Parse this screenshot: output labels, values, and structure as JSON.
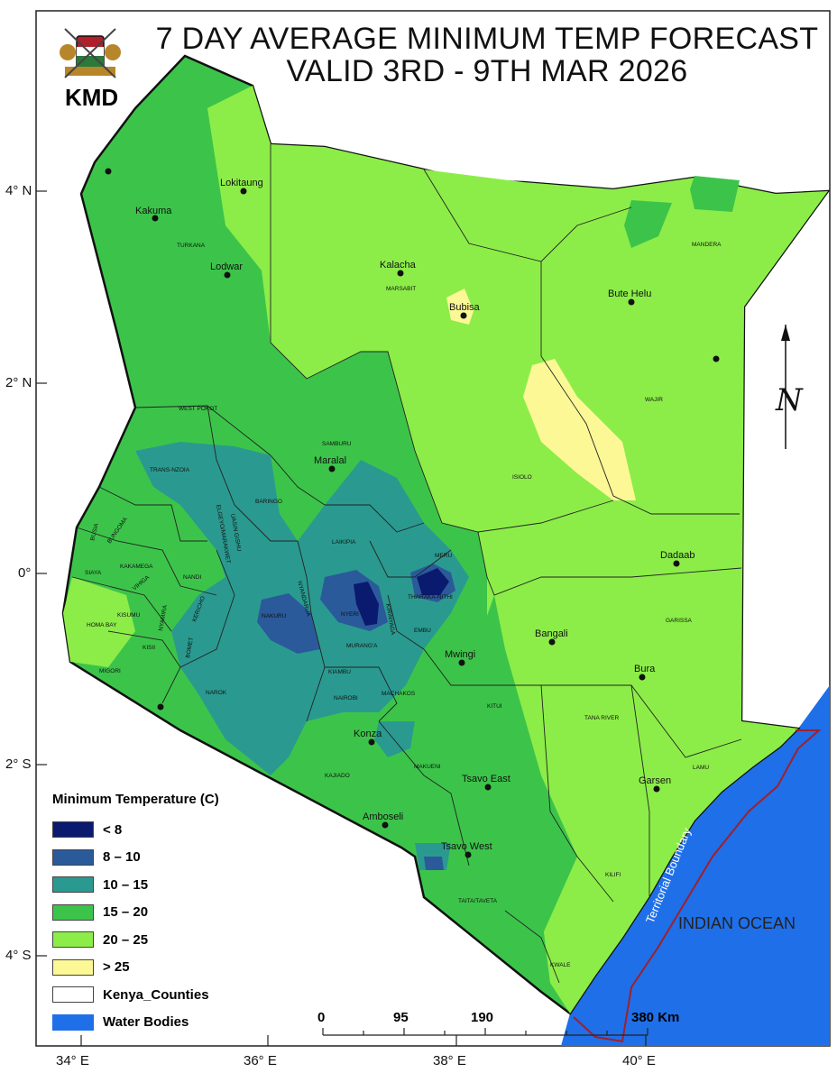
{
  "header": {
    "title_line1": "7 DAY AVERAGE MINIMUM TEMP FORECAST",
    "title_line2": "VALID 3RD - 9TH MAR 2026",
    "logo_text": "KMD"
  },
  "axes": {
    "latitude": [
      "4° N",
      "2° N",
      "0°",
      "2° S",
      "4° S"
    ],
    "longitude": [
      "34° E",
      "36° E",
      "38° E",
      "40° E"
    ]
  },
  "legend": {
    "title": "Minimum Temperature (C)",
    "items": [
      {
        "label": "< 8",
        "color": "#0a1a6e"
      },
      {
        "label": "8 – 10",
        "color": "#2a5a9a"
      },
      {
        "label": "10 – 15",
        "color": "#2a9a90"
      },
      {
        "label": "15 – 20",
        "color": "#3cc44a"
      },
      {
        "label": "20 – 25",
        "color": "#8ced48"
      },
      {
        "label": "> 25",
        "color": "#fcf896"
      },
      {
        "label": "Kenya_Counties",
        "color": "#ffffff"
      },
      {
        "label": "Water Bodies",
        "color": "#1f6fe8"
      }
    ]
  },
  "scale_bar": {
    "labels": [
      "0",
      "95",
      "190",
      "380 Km"
    ]
  },
  "map_labels": {
    "ocean": "INDIAN OCEAN",
    "boundary": "Territorial Boundary",
    "north_symbol": "N"
  },
  "towns": [
    "Lokitaung",
    "Kakuma",
    "Lodwar",
    "Kalacha",
    "Bubisa",
    "Bute Helu",
    "Maralal",
    "Dadaab",
    "Bangali",
    "Mwingi",
    "Bura",
    "Konza",
    "Garsen",
    "Tsavo East",
    "Amboseli",
    "Tsavo West"
  ],
  "counties": [
    "TURKANA",
    "MARSABIT",
    "MANDERA",
    "WAJIR",
    "WEST POKOT",
    "SAMBURU",
    "ISIOLO",
    "TRANS-NZOIA",
    "ELGEYO/MARAKWET",
    "UASIN GISHU",
    "BARINGO",
    "LAIKIPIA",
    "MERU",
    "THARAKA-NITHI",
    "NANDI",
    "KAKAMEGA",
    "BUNGOMA",
    "BUSIA",
    "SIAYA",
    "VIHIGA",
    "KISUMU",
    "KERICHO",
    "NAKURU",
    "NYANDARUA",
    "NYERI",
    "KIRINYAGA",
    "EMBU",
    "MURANG'A",
    "HOMA BAY",
    "NYAMIRA",
    "KISII",
    "BOMET",
    "MIGORI",
    "NAROK",
    "KIAMBU",
    "NAIROBI",
    "MACHAKOS",
    "KITUI",
    "GARISSA",
    "TANA RIVER",
    "LAMU",
    "KAJIADO",
    "MAKUENI",
    "TAITA/TAVETA",
    "KILIFI",
    "KWALE"
  ],
  "colors": {
    "water": "#1f6fe8",
    "boundary_line": "#a0202a",
    "county_line": "#222222"
  }
}
